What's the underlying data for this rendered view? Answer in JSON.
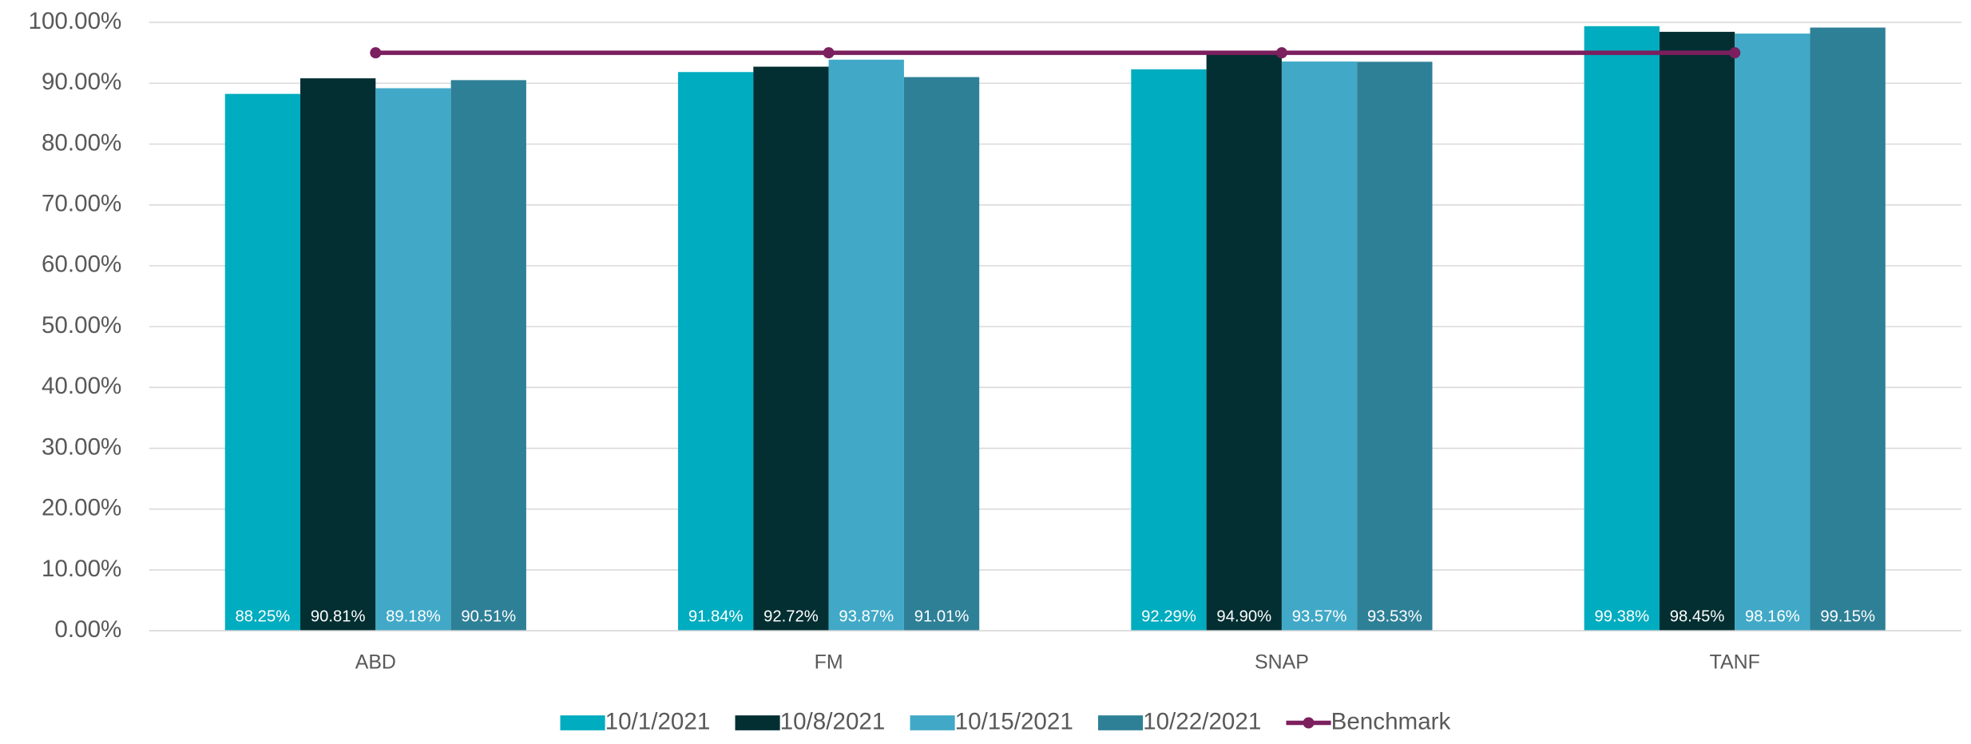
{
  "chart_data": {
    "type": "bar",
    "categories": [
      "ABD",
      "FM",
      "SNAP",
      "TANF"
    ],
    "series": [
      {
        "name": "10/1/2021",
        "color": "#00acbf",
        "values": [
          88.25,
          91.84,
          92.29,
          99.38
        ],
        "value_labels": [
          "88.25%",
          "91.84%",
          "92.29%",
          "99.38%"
        ]
      },
      {
        "name": "10/8/2021",
        "color": "#032f32",
        "values": [
          90.81,
          92.72,
          94.9,
          98.45
        ],
        "value_labels": [
          "90.81%",
          "92.72%",
          "94.90%",
          "98.45%"
        ]
      },
      {
        "name": "10/15/2021",
        "color": "#41a9c7",
        "values": [
          89.18,
          93.87,
          93.57,
          98.16
        ],
        "value_labels": [
          "89.18%",
          "93.87%",
          "93.57%",
          "98.16%"
        ]
      },
      {
        "name": "10/22/2021",
        "color": "#2e8097",
        "values": [
          90.51,
          91.01,
          93.53,
          99.15
        ],
        "value_labels": [
          "90.51%",
          "91.01%",
          "93.53%",
          "99.15%"
        ]
      },
      {
        "name": "Benchmark",
        "color": "#7b1f5e",
        "type": "line",
        "values": [
          95,
          95,
          95,
          95
        ]
      }
    ],
    "ylim": [
      0,
      100
    ],
    "yticks": [
      {
        "value": 0,
        "label": "0.00%"
      },
      {
        "value": 10,
        "label": "10.00%"
      },
      {
        "value": 20,
        "label": "20.00%"
      },
      {
        "value": 30,
        "label": "30.00%"
      },
      {
        "value": 40,
        "label": "40.00%"
      },
      {
        "value": 50,
        "label": "50.00%"
      },
      {
        "value": 60,
        "label": "60.00%"
      },
      {
        "value": 70,
        "label": "70.00%"
      },
      {
        "value": 80,
        "label": "80.00%"
      },
      {
        "value": 90,
        "label": "90.00%"
      },
      {
        "value": 100,
        "label": "100.00%"
      }
    ],
    "grid": true,
    "legend": "bottom"
  }
}
